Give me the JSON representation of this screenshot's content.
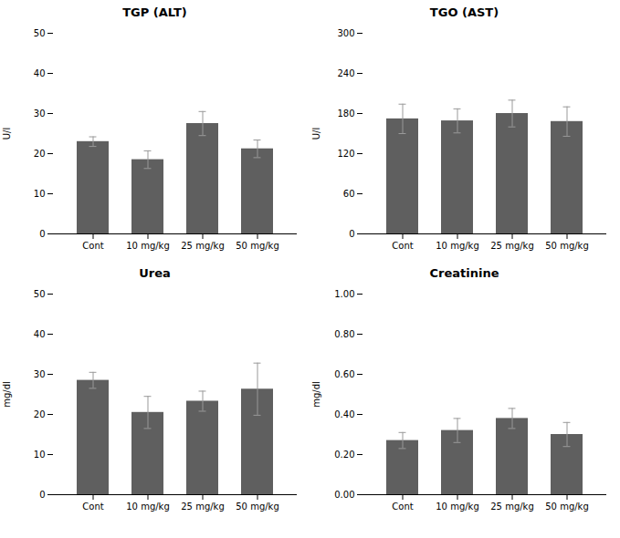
{
  "chart_data": [
    {
      "type": "bar",
      "title": "TGP (ALT)",
      "ylabel": "U/l",
      "categories": [
        "Cont",
        "10 mg/kg",
        "25 mg/kg",
        "50 mg/kg"
      ],
      "values": [
        23.0,
        18.5,
        27.5,
        21.2
      ],
      "errors": [
        1.2,
        2.2,
        3.0,
        2.2
      ],
      "color": "#5f5f5f",
      "ylim": [
        0,
        50
      ],
      "yticks": [
        0,
        10,
        20,
        30,
        40,
        50
      ],
      "grid": false
    },
    {
      "type": "bar",
      "title": "TGO (AST)",
      "ylabel": "U/l",
      "categories": [
        "Cont",
        "10 mg/kg",
        "25 mg/kg",
        "50 mg/kg"
      ],
      "values": [
        172.0,
        169.0,
        180.0,
        168.0
      ],
      "errors": [
        22.0,
        18.0,
        20.0,
        22.0
      ],
      "color": "#5f5f5f",
      "ylim": [
        0,
        300
      ],
      "yticks": [
        0,
        60,
        120,
        180,
        240,
        300
      ],
      "grid": false
    },
    {
      "type": "bar",
      "title": "Urea",
      "ylabel": "mg/dl",
      "categories": [
        "Cont",
        "10 mg/kg",
        "25 mg/kg",
        "50 mg/kg"
      ],
      "values": [
        28.5,
        20.5,
        23.3,
        26.3
      ],
      "errors": [
        2.0,
        4.0,
        2.5,
        6.5
      ],
      "color": "#5f5f5f",
      "ylim": [
        0,
        50
      ],
      "yticks": [
        0,
        10,
        20,
        30,
        40,
        50
      ],
      "grid": false
    },
    {
      "type": "bar",
      "title": "Creatinine",
      "ylabel": "mg/dl",
      "categories": [
        "Cont",
        "10 mg/kg",
        "25 mg/kg",
        "50 mg/kg"
      ],
      "values": [
        0.27,
        0.32,
        0.38,
        0.3
      ],
      "errors": [
        0.04,
        0.06,
        0.05,
        0.06
      ],
      "color": "#5f5f5f",
      "ylim": [
        0,
        1.0
      ],
      "yticks": [
        {
          "value": 0,
          "label": "0.00"
        },
        {
          "value": 0.2,
          "label": "0.20"
        },
        {
          "value": 0.4,
          "label": "0.40"
        },
        {
          "value": 0.6,
          "label": "0.60"
        },
        {
          "value": 0.8,
          "label": "0.80"
        },
        {
          "value": 1.0,
          "label": "1.00"
        }
      ],
      "grid": false
    }
  ]
}
